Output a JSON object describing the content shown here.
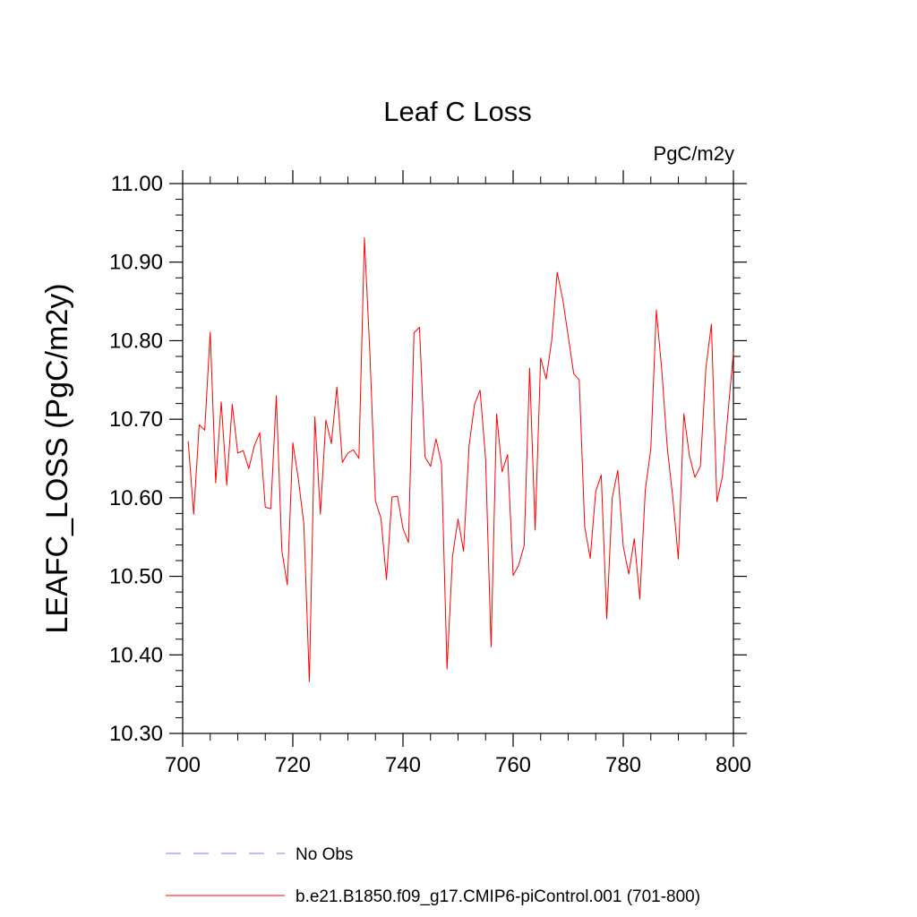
{
  "chart_data": {
    "type": "line",
    "title": "Leaf C Loss",
    "units_label": "PgC/m2y",
    "ylabel": "LEAFC_LOSS  (PgC/m2y)",
    "xlabel": "",
    "xlim": [
      700,
      800
    ],
    "ylim": [
      10.3,
      11.0
    ],
    "x_ticks": [
      700,
      720,
      740,
      760,
      780,
      800
    ],
    "x_tick_labels": [
      "700",
      "720",
      "740",
      "760",
      "780",
      "800"
    ],
    "y_ticks": [
      10.3,
      10.4,
      10.5,
      10.6,
      10.7,
      10.8,
      10.9,
      11.0
    ],
    "y_tick_labels": [
      "10.30",
      "10.40",
      "10.50",
      "10.60",
      "10.70",
      "10.80",
      "10.90",
      "11.00"
    ],
    "grid": false,
    "legend_position": "bottom",
    "series": [
      {
        "name": "No Obs",
        "color": "#8a7fd0",
        "dash": "dashed",
        "x": [],
        "values": []
      },
      {
        "name": "b.e21.B1850.f09_g17.CMIP6-piControl.001 (701-800)",
        "color": "#ff0000",
        "dash": "solid",
        "x": [
          701,
          702,
          703,
          704,
          705,
          706,
          707,
          708,
          709,
          710,
          711,
          712,
          713,
          714,
          715,
          716,
          717,
          718,
          719,
          720,
          721,
          722,
          723,
          724,
          725,
          726,
          727,
          728,
          729,
          730,
          731,
          732,
          733,
          734,
          735,
          736,
          737,
          738,
          739,
          740,
          741,
          742,
          743,
          744,
          745,
          746,
          747,
          748,
          749,
          750,
          751,
          752,
          753,
          754,
          755,
          756,
          757,
          758,
          759,
          760,
          761,
          762,
          763,
          764,
          765,
          766,
          767,
          768,
          769,
          770,
          771,
          772,
          773,
          774,
          775,
          776,
          777,
          778,
          779,
          780,
          781,
          782,
          783,
          784,
          785,
          786,
          787,
          788,
          789,
          790,
          791,
          792,
          793,
          794,
          795,
          796,
          797,
          798,
          799,
          800
        ],
        "values": [
          10.672,
          10.579,
          10.693,
          10.686,
          10.811,
          10.619,
          10.722,
          10.616,
          10.719,
          10.657,
          10.66,
          10.637,
          10.666,
          10.683,
          10.588,
          10.586,
          10.73,
          10.533,
          10.489,
          10.67,
          10.624,
          10.567,
          10.366,
          10.703,
          10.579,
          10.699,
          10.669,
          10.741,
          10.645,
          10.657,
          10.661,
          10.65,
          10.931,
          10.783,
          10.596,
          10.574,
          10.496,
          10.601,
          10.602,
          10.561,
          10.543,
          10.81,
          10.817,
          10.652,
          10.64,
          10.675,
          10.643,
          10.382,
          10.526,
          10.573,
          10.532,
          10.666,
          10.719,
          10.737,
          10.65,
          10.41,
          10.707,
          10.633,
          10.655,
          10.501,
          10.514,
          10.539,
          10.765,
          10.559,
          10.778,
          10.751,
          10.8,
          10.887,
          10.853,
          10.806,
          10.758,
          10.75,
          10.563,
          10.523,
          10.608,
          10.629,
          10.446,
          10.6,
          10.635,
          10.538,
          10.503,
          10.548,
          10.471,
          10.61,
          10.662,
          10.839,
          10.762,
          10.663,
          10.6,
          10.522,
          10.707,
          10.654,
          10.626,
          10.64,
          10.765,
          10.821,
          10.595,
          10.627,
          10.707,
          10.785
        ]
      }
    ]
  }
}
